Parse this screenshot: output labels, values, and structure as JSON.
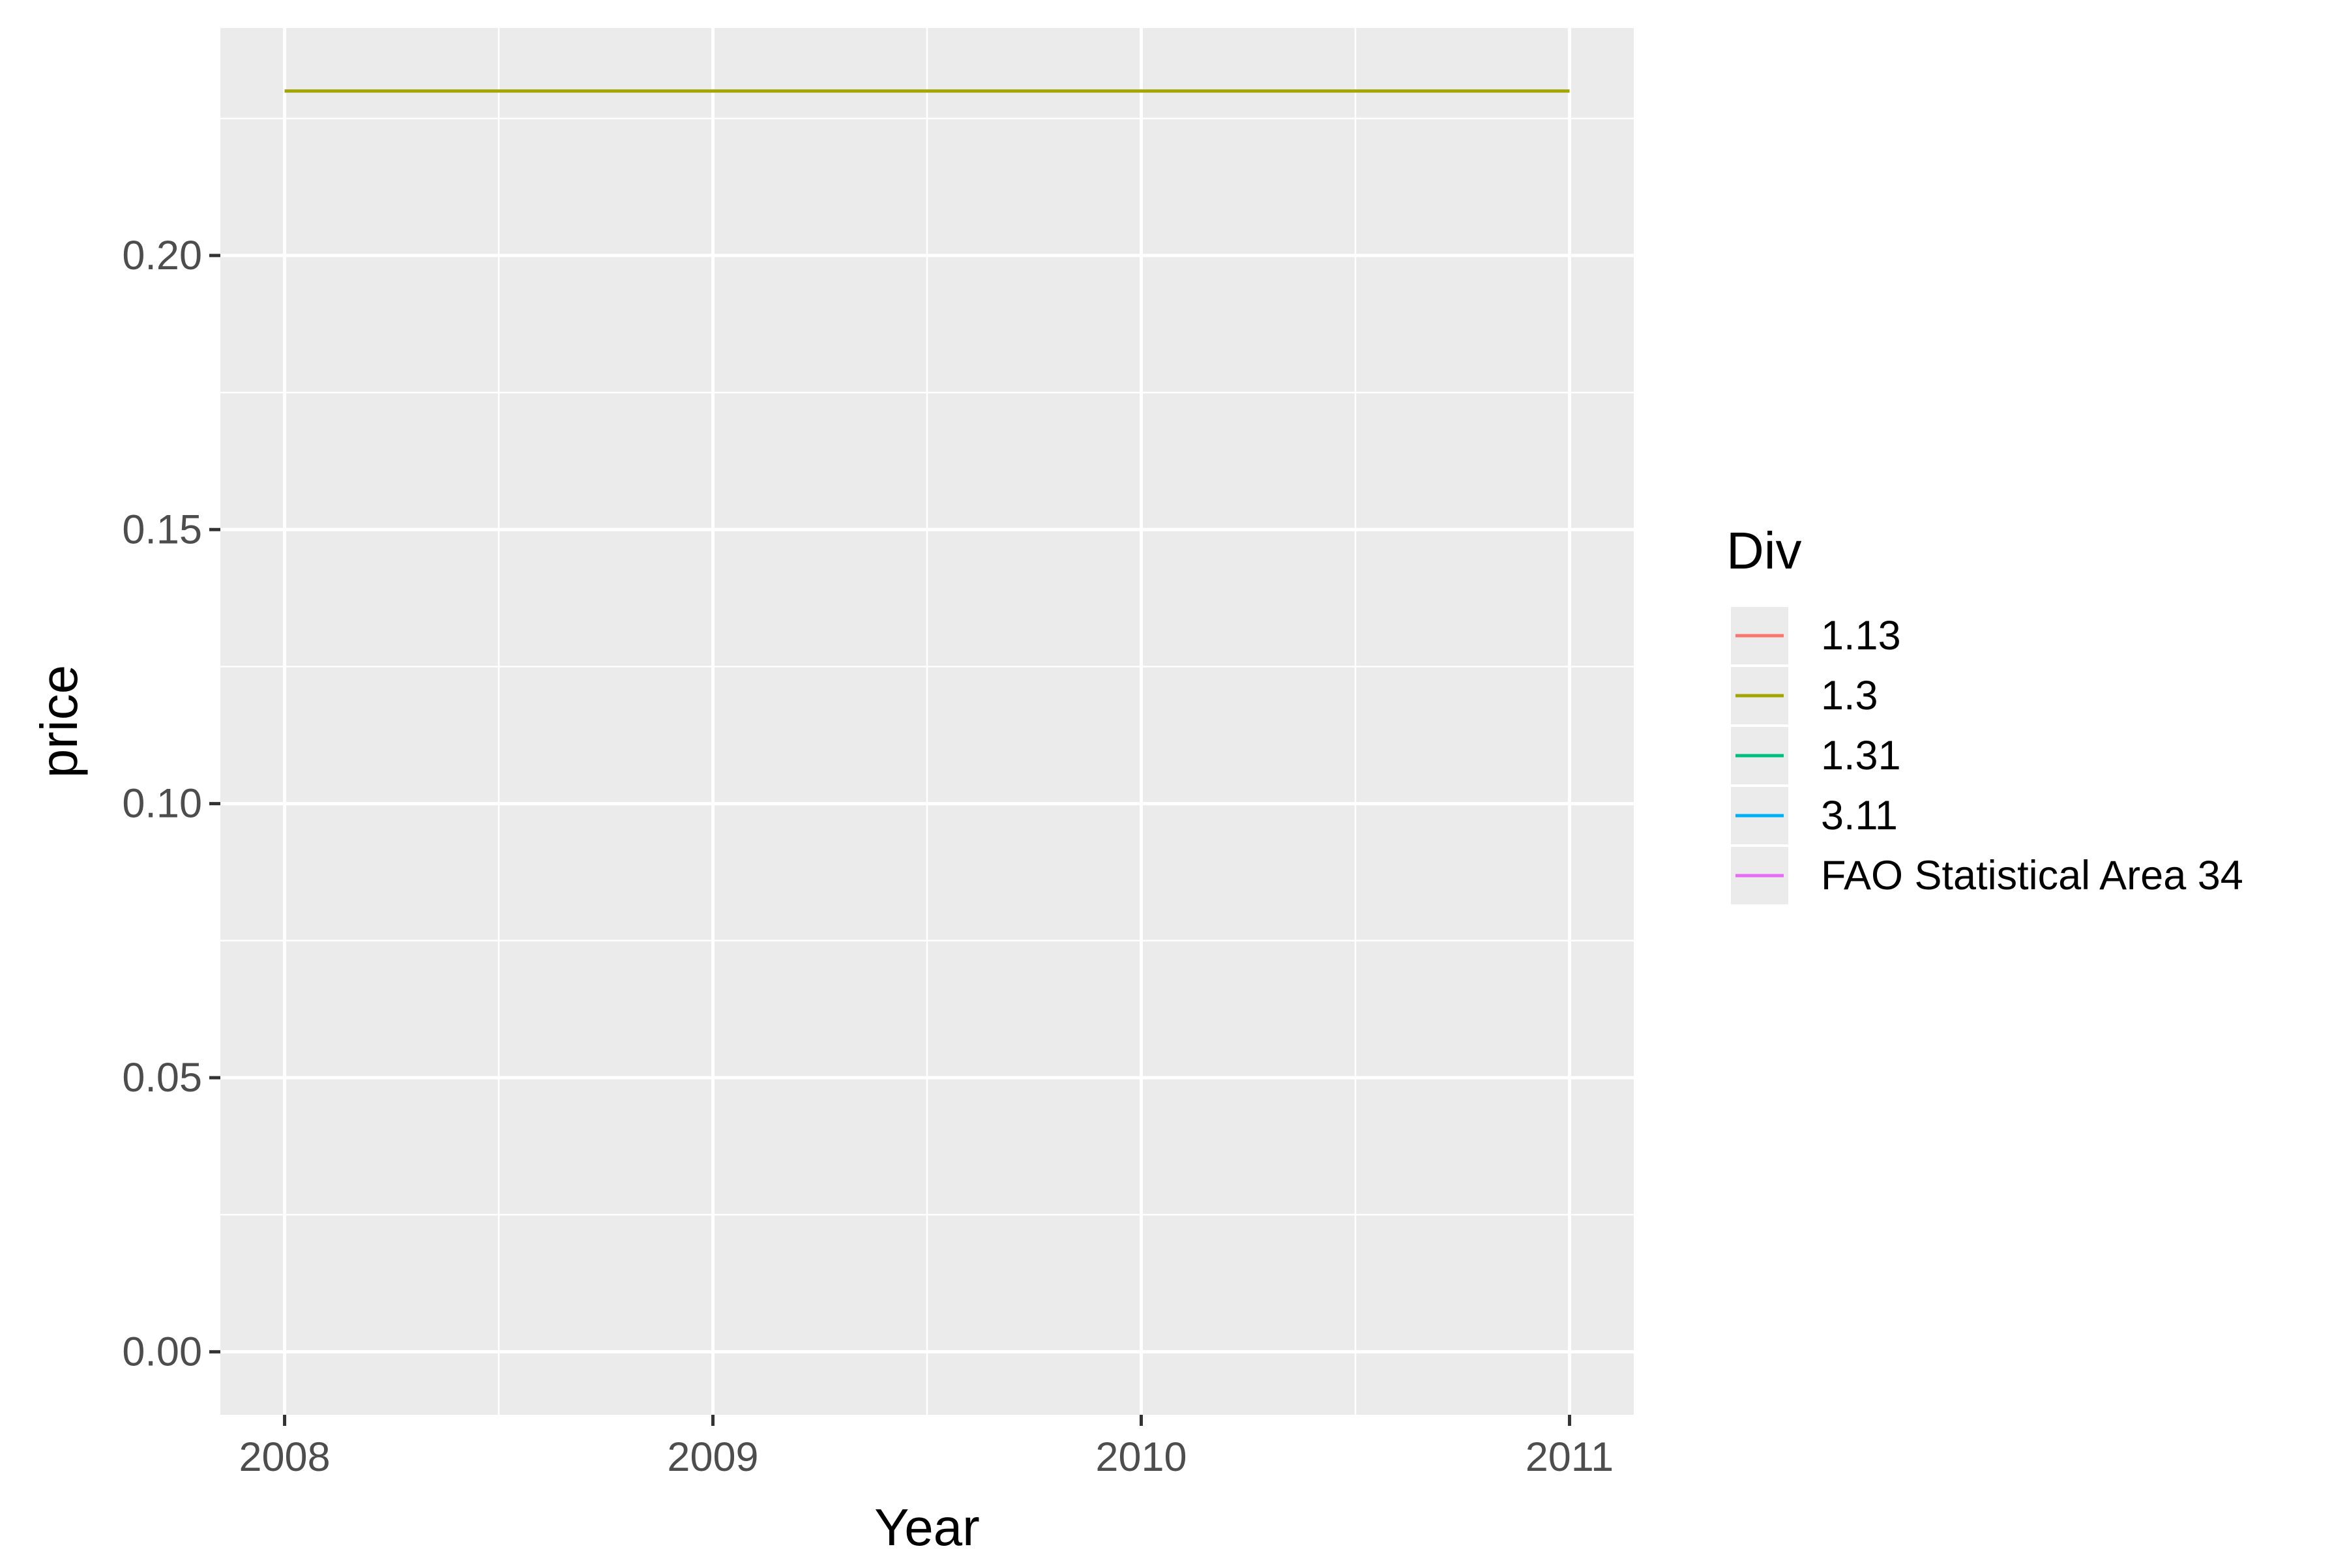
{
  "chart_data": {
    "type": "line",
    "title": "",
    "xlabel": "Year",
    "ylabel": "price",
    "x": [
      2008,
      2011
    ],
    "x_ticks": [
      "2008",
      "2009",
      "2010",
      "2011"
    ],
    "y_ticks": [
      "0.00",
      "0.05",
      "0.10",
      "0.15",
      "0.20"
    ],
    "xlim": [
      2007.85,
      2011.15
    ],
    "ylim": [
      -0.0115,
      0.2415
    ],
    "grid": true,
    "legend": {
      "title": "Div",
      "placement": "right",
      "entries": [
        "1.13",
        "1.3",
        "1.31",
        "3.11",
        "FAO Statistical Area 34"
      ]
    },
    "series": [
      {
        "name": "1.13",
        "color": "#F8766D",
        "x": [],
        "y": []
      },
      {
        "name": "1.3",
        "color": "#A3A500",
        "x": [
          2008,
          2011
        ],
        "y": [
          0.23,
          0.23
        ]
      },
      {
        "name": "1.31",
        "color": "#00BF7D",
        "x": [],
        "y": []
      },
      {
        "name": "3.11",
        "color": "#00B0F6",
        "x": [],
        "y": []
      },
      {
        "name": "FAO Statistical Area 34",
        "color": "#E76BF3",
        "x": [],
        "y": []
      }
    ],
    "colors": {
      "panel_background": "#EBEBEB",
      "grid": "#FFFFFF",
      "axis_text": "#4D4D4D",
      "tick": "#333333",
      "title_text": "#000000"
    }
  }
}
